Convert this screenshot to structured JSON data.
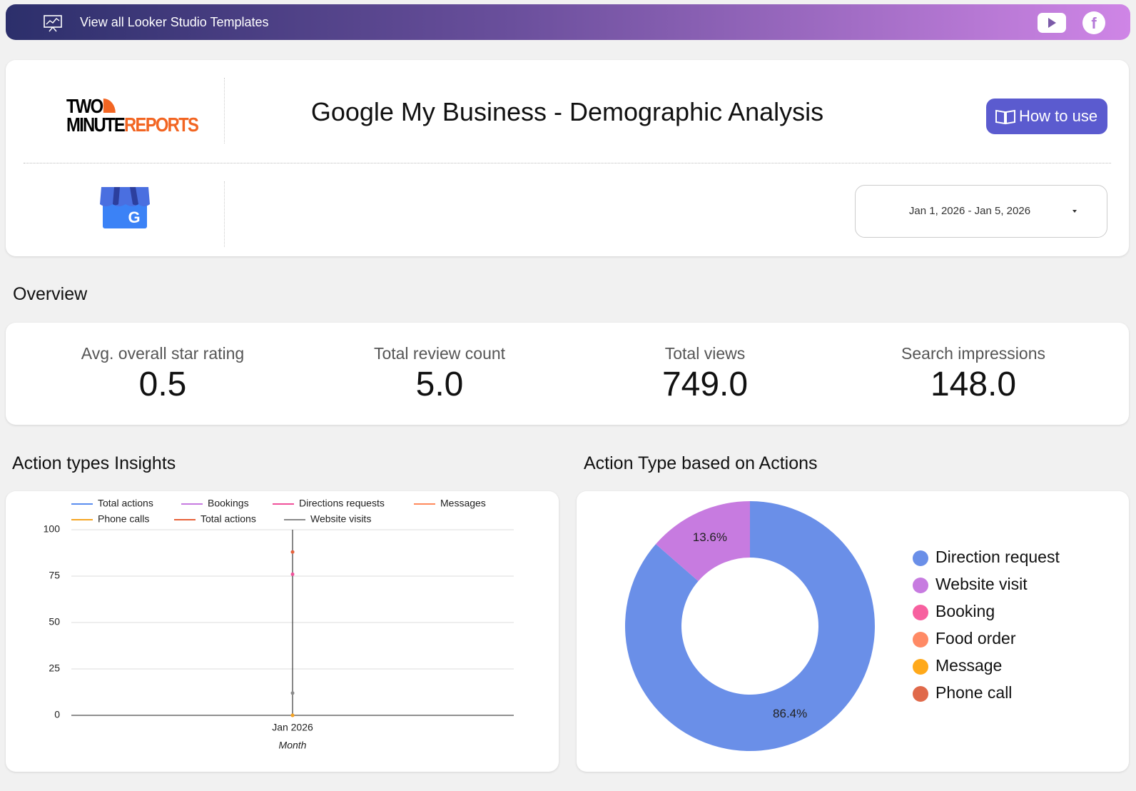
{
  "banner": {
    "text": "View all Looker Studio Templates"
  },
  "header": {
    "logo_top": "TWO",
    "logo_bottom_1": "MINUTE",
    "logo_bottom_2": "REPORTS",
    "title": "Google My Business - Demographic Analysis",
    "button": "How to use",
    "date_range": "Jan 1, 2026 - Jan 5, 2026"
  },
  "overview": {
    "heading": "Overview",
    "kpis": [
      {
        "label": "Avg. overall star rating",
        "value": "0.5"
      },
      {
        "label": "Total review count",
        "value": "5.0"
      },
      {
        "label": "Total views",
        "value": "749.0"
      },
      {
        "label": "Search impressions",
        "value": "148.0"
      }
    ]
  },
  "chart_data": [
    {
      "type": "line",
      "title": "Action types Insights",
      "x_label": "Month",
      "categories": [
        "Jan 2026"
      ],
      "series": [
        {
          "name": "Total actions",
          "color": "#5b8def",
          "values": [
            88
          ]
        },
        {
          "name": "Bookings",
          "color": "#c77be0",
          "values": [
            0
          ]
        },
        {
          "name": "Directions requests",
          "color": "#f0509a",
          "values": [
            76
          ]
        },
        {
          "name": "Messages",
          "color": "#ff8a5c",
          "values": [
            0
          ]
        },
        {
          "name": "Phone calls",
          "color": "#f5a623",
          "values": [
            0
          ]
        },
        {
          "name": "Total actions",
          "color": "#e8623a",
          "values": [
            88
          ]
        },
        {
          "name": "Website visits",
          "color": "#8a8a8a",
          "values": [
            12
          ]
        }
      ],
      "ylim": [
        0,
        100
      ],
      "yticks": [
        0,
        25,
        50,
        75,
        100
      ],
      "grid": true
    },
    {
      "type": "pie",
      "title": "Action Type based on Actions",
      "categories": [
        "Direction request",
        "Website visit",
        "Booking",
        "Food order",
        "Message",
        "Phone call"
      ],
      "values": [
        86.4,
        13.6,
        0,
        0,
        0,
        0
      ],
      "value_labels": [
        "86.4%",
        "13.6%",
        null,
        null,
        null,
        null
      ],
      "colors": [
        "#6a8fe8",
        "#c77be0",
        "#f7609f",
        "#ff8a65",
        "#ffa91a",
        "#e0694a"
      ],
      "donut": true
    }
  ]
}
